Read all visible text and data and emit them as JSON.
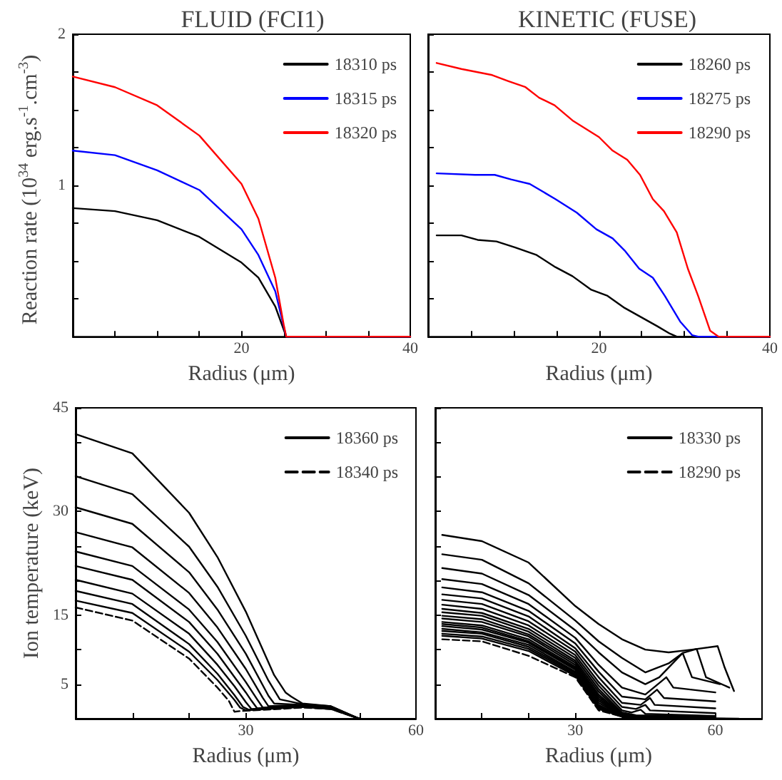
{
  "chart_data": [
    {
      "type": "line",
      "title": "FLUID (FCI1)",
      "xlabel": "Radius (μm)",
      "ylabel": "Reaction rate (10$^{34}$ erg.s$^{-1}$.cm$^{-3}$)",
      "xlim": [
        0,
        40
      ],
      "ylim": [
        0,
        2
      ],
      "xticks": [
        {
          "value": 5,
          "label": null
        },
        {
          "value": 10,
          "label": null
        },
        {
          "value": 15,
          "label": null
        },
        20,
        {
          "value": 25,
          "label": null
        },
        {
          "value": 30,
          "label": null
        },
        {
          "value": 35,
          "label": null
        },
        40
      ],
      "yticks": [
        {
          "value": 0.25,
          "label": null
        },
        {
          "value": 0.5,
          "label": null
        },
        {
          "value": 0.75,
          "label": null
        },
        1,
        {
          "value": 1.25,
          "label": null
        },
        {
          "value": 1.5,
          "label": null
        },
        {
          "value": 1.75,
          "label": null
        },
        2
      ],
      "legend": "top right",
      "marker": "none",
      "series": [
        {
          "name": "18310 ps",
          "color": "#000000",
          "x": [
            0,
            5,
            10,
            15,
            20,
            22,
            24,
            25.3,
            40
          ],
          "values": [
            0.85,
            0.83,
            0.77,
            0.66,
            0.49,
            0.39,
            0.2,
            0,
            0
          ]
        },
        {
          "name": "18315 ps",
          "color": "#0000ff",
          "x": [
            0,
            5,
            10,
            15,
            20,
            22,
            24,
            25.3,
            40
          ],
          "values": [
            1.23,
            1.2,
            1.1,
            0.97,
            0.71,
            0.54,
            0.3,
            0,
            0
          ]
        },
        {
          "name": "18320 ps",
          "color": "#ff0000",
          "x": [
            0,
            5,
            10,
            15,
            20,
            22,
            24,
            25,
            25.3,
            40
          ],
          "values": [
            1.72,
            1.65,
            1.53,
            1.33,
            1.01,
            0.78,
            0.39,
            0.08,
            0,
            0
          ]
        }
      ]
    },
    {
      "type": "line",
      "title": "KINETIC (FUSE)",
      "xlabel": "Radius (μm)",
      "xlim": [
        0,
        40
      ],
      "ylim": [
        0,
        2
      ],
      "tick_labels": "x",
      "xticks": [
        {
          "value": 5,
          "label": null
        },
        {
          "value": 10,
          "label": null
        },
        {
          "value": 15,
          "label": null
        },
        20,
        {
          "value": 25,
          "label": null
        },
        {
          "value": 30,
          "label": null
        },
        {
          "value": 35,
          "label": null
        },
        40
      ],
      "yticks": [
        {
          "value": 0.25,
          "label": null
        },
        {
          "value": 0.5,
          "label": null
        },
        {
          "value": 0.75,
          "label": null
        },
        {
          "value": 1,
          "label": null
        },
        {
          "value": 1.25,
          "label": null
        },
        {
          "value": 1.5,
          "label": null
        },
        {
          "value": 1.75,
          "label": null
        },
        {
          "value": 2,
          "label": null
        }
      ],
      "legend": "top right",
      "marker": "none",
      "series": [
        {
          "name": "18260 ps",
          "color": "#000000",
          "x": [
            1,
            3.9,
            5.8,
            8,
            10.2,
            12.7,
            14.9,
            16.9,
            19.1,
            21,
            23,
            24.9,
            26.8,
            28.3,
            29.1,
            40
          ],
          "values": [
            0.67,
            0.67,
            0.64,
            0.63,
            0.59,
            0.54,
            0.46,
            0.4,
            0.31,
            0.27,
            0.19,
            0.13,
            0.07,
            0.02,
            0,
            0
          ]
        },
        {
          "name": "18275 ps",
          "color": "#0000ff",
          "x": [
            1,
            5.5,
            7.8,
            9.7,
            11.9,
            14.9,
            17.4,
            19.7,
            21.6,
            23,
            24.7,
            26.3,
            27.7,
            29.5,
            30.9,
            31.6,
            40
          ],
          "values": [
            1.08,
            1.07,
            1.07,
            1.04,
            1.01,
            0.91,
            0.82,
            0.71,
            0.65,
            0.57,
            0.45,
            0.39,
            0.27,
            0.1,
            0.01,
            0,
            0
          ]
        },
        {
          "name": "18290 ps",
          "color": "#ff0000",
          "x": [
            1,
            3.9,
            7.5,
            9.4,
            11.4,
            13,
            14.8,
            16.9,
            20,
            21.6,
            23.3,
            24.8,
            26.3,
            27.6,
            29.1,
            30.4,
            31.6,
            33,
            34,
            40
          ],
          "values": [
            1.81,
            1.77,
            1.73,
            1.69,
            1.65,
            1.58,
            1.53,
            1.43,
            1.32,
            1.23,
            1.17,
            1.07,
            0.91,
            0.83,
            0.69,
            0.45,
            0.27,
            0.04,
            0,
            0
          ]
        }
      ]
    },
    {
      "type": "line",
      "xlabel": "Radius (μm)",
      "ylabel": "Ion temperature (keV)",
      "xlim": [
        0,
        60
      ],
      "ylim": [
        0,
        45
      ],
      "xticks": [
        {
          "value": 10,
          "label": null
        },
        {
          "value": 20,
          "label": null
        },
        30,
        {
          "value": 40,
          "label": null
        },
        {
          "value": 50,
          "label": null
        },
        60
      ],
      "yticks": [
        5,
        {
          "value": 10,
          "label": null
        },
        15,
        {
          "value": 20,
          "label": null
        },
        {
          "value": 25,
          "label": null
        },
        30,
        {
          "value": 35,
          "label": null
        },
        {
          "value": 40,
          "label": null
        },
        45
      ],
      "legend": "top right",
      "marker": "none",
      "series": [
        {
          "name": "18360 ps",
          "color": "#000000",
          "line_style": "solid",
          "x": [
            0,
            10,
            20,
            25,
            30,
            35,
            37,
            38,
            40,
            45,
            50
          ],
          "values": [
            41.2,
            38.4,
            29.8,
            23.4,
            15.5,
            6.3,
            3.8,
            3.2,
            2.2,
            1.8,
            0
          ]
        },
        {
          "color": "#000000",
          "line_style": "solid",
          "x": [
            0,
            10,
            20,
            25,
            30,
            34,
            36,
            40,
            45,
            50
          ],
          "values": [
            35.1,
            32.5,
            24.9,
            19.1,
            12,
            5.5,
            2.8,
            2.1,
            1.8,
            0
          ]
        },
        {
          "color": "#000000",
          "line_style": "solid",
          "x": [
            0,
            10,
            20,
            25,
            30,
            34,
            35,
            40,
            45,
            50
          ],
          "values": [
            30.6,
            28.2,
            21.2,
            15.8,
            9.4,
            3.3,
            2.2,
            2,
            1.7,
            0
          ]
        },
        {
          "color": "#000000",
          "line_style": "solid",
          "x": [
            0,
            10,
            20,
            25,
            30,
            33,
            34,
            40,
            45,
            50
          ],
          "values": [
            27,
            24.8,
            18.2,
            13.2,
            7.2,
            3,
            1.8,
            2,
            1.7,
            0
          ]
        },
        {
          "color": "#000000",
          "line_style": "solid",
          "x": [
            0,
            10,
            20,
            25,
            30,
            32,
            33,
            40,
            45,
            50
          ],
          "values": [
            24.2,
            22.1,
            15.8,
            11.1,
            5.3,
            2.8,
            1.6,
            1.9,
            1.6,
            0
          ]
        },
        {
          "color": "#000000",
          "line_style": "solid",
          "x": [
            0,
            10,
            20,
            25,
            30,
            31,
            32,
            40,
            45,
            50
          ],
          "values": [
            22.1,
            20.1,
            14,
            9.4,
            3.8,
            2.6,
            1.5,
            1.9,
            1.6,
            0
          ]
        },
        {
          "color": "#000000",
          "line_style": "solid",
          "x": [
            0,
            10,
            20,
            25,
            28,
            30,
            31,
            40,
            45,
            50
          ],
          "values": [
            20.1,
            18.1,
            12.3,
            7.8,
            4.7,
            2.4,
            1.4,
            1.8,
            1.5,
            0
          ]
        },
        {
          "color": "#000000",
          "line_style": "solid",
          "x": [
            0,
            10,
            20,
            25,
            28,
            29.5,
            30.5,
            40,
            45,
            50
          ],
          "values": [
            18.5,
            16.6,
            10.8,
            6.5,
            3.4,
            1.7,
            1.3,
            1.8,
            1.5,
            0
          ]
        },
        {
          "color": "#000000",
          "line_style": "solid",
          "x": [
            0,
            10,
            20,
            25,
            28,
            29,
            30,
            40,
            45,
            50
          ],
          "values": [
            17.1,
            15.3,
            9.7,
            5.6,
            2.7,
            1.6,
            1.2,
            1.7,
            1.4,
            0
          ]
        },
        {
          "name": "18340 ps",
          "color": "#000000",
          "line_style": "dashed",
          "x": [
            0,
            10,
            20,
            25,
            27,
            28,
            29,
            40,
            45,
            50
          ],
          "values": [
            16.1,
            14.2,
            8.7,
            4.5,
            2.6,
            1,
            1.1,
            1.6,
            1.4,
            0
          ]
        }
      ]
    },
    {
      "type": "line",
      "xlabel": "Radius (μm)",
      "xlim": [
        0,
        70
      ],
      "ylim": [
        0,
        45
      ],
      "tick_labels": "x",
      "xticks": [
        {
          "value": 10,
          "label": null
        },
        {
          "value": 20,
          "label": null
        },
        30,
        {
          "value": 40,
          "label": null
        },
        {
          "value": 50,
          "label": null
        },
        60
      ],
      "yticks": [
        {
          "value": 5,
          "label": null
        },
        {
          "value": 10,
          "label": null
        },
        {
          "value": 15,
          "label": null
        },
        {
          "value": 20,
          "label": null
        },
        {
          "value": 25,
          "label": null
        },
        {
          "value": 30,
          "label": null
        },
        {
          "value": 35,
          "label": null
        },
        {
          "value": 40,
          "label": null
        },
        {
          "value": 45,
          "label": null
        }
      ],
      "legend": "top right",
      "marker": "none",
      "series": [
        {
          "name": "18330 ps",
          "color": "#000000",
          "line_style": "solid",
          "x": [
            1.5,
            10,
            20,
            30,
            35,
            40,
            45,
            50,
            55,
            60.5,
            62,
            64
          ],
          "values": [
            26.6,
            25.7,
            22.6,
            16.3,
            13.7,
            11.5,
            10,
            9.6,
            10,
            10.5,
            7.4,
            4
          ]
        },
        {
          "color": "#000000",
          "line_style": "solid",
          "x": [
            1.5,
            10,
            20,
            30,
            35,
            40,
            45,
            50,
            53,
            56,
            58,
            63
          ],
          "values": [
            23.8,
            23,
            19.6,
            14.2,
            11.2,
            8.8,
            6.7,
            8,
            9.5,
            10.1,
            6,
            4.5
          ]
        },
        {
          "color": "#000000",
          "line_style": "solid",
          "x": [
            1.5,
            10,
            20,
            30,
            35,
            40,
            45,
            48,
            53,
            55,
            61
          ],
          "values": [
            21.8,
            21,
            17.9,
            12.8,
            9.6,
            6.7,
            5,
            6,
            9.5,
            6,
            5
          ]
        },
        {
          "color": "#000000",
          "line_style": "solid",
          "x": [
            1.5,
            10,
            20,
            30,
            35,
            40,
            45,
            49.5,
            51,
            60
          ],
          "values": [
            20.2,
            19.5,
            16.6,
            11.7,
            7.8,
            4.5,
            3.5,
            6,
            4.5,
            3.8
          ]
        },
        {
          "color": "#000000",
          "line_style": "solid",
          "x": [
            1.5,
            10,
            20,
            30,
            35,
            40,
            45,
            47.5,
            49,
            60
          ],
          "values": [
            19,
            18.3,
            15.6,
            10.9,
            6.8,
            3.2,
            2.8,
            4.2,
            3,
            2.5
          ]
        },
        {
          "color": "#000000",
          "line_style": "solid",
          "x": [
            1.5,
            10,
            20,
            30,
            35,
            40,
            44,
            46,
            47,
            60
          ],
          "values": [
            18,
            17.4,
            14.8,
            10.2,
            6,
            2.3,
            2,
            3,
            2,
            1.5
          ]
        },
        {
          "color": "#000000",
          "line_style": "solid",
          "x": [
            1.5,
            10,
            20,
            30,
            35,
            40,
            43,
            45,
            46,
            60
          ],
          "values": [
            17.2,
            16.6,
            14.1,
            9.7,
            5.3,
            1.7,
            1.4,
            2,
            1.2,
            0.8
          ]
        },
        {
          "color": "#000000",
          "line_style": "solid",
          "x": [
            1.5,
            10,
            20,
            30,
            35,
            40,
            42,
            44,
            45,
            60
          ],
          "values": [
            16.5,
            15.9,
            13.5,
            9.2,
            4.8,
            1.2,
            0.9,
            1.3,
            0.7,
            0.4
          ]
        },
        {
          "color": "#000000",
          "line_style": "solid",
          "x": [
            1.5,
            10,
            20,
            30,
            35,
            40,
            43,
            60
          ],
          "values": [
            15.9,
            15.3,
            13,
            8.8,
            4.3,
            0.9,
            0.5,
            0.3
          ]
        },
        {
          "color": "#000000",
          "line_style": "solid",
          "x": [
            1.5,
            10,
            20,
            30,
            35,
            40,
            43,
            60
          ],
          "values": [
            15.4,
            14.9,
            12.6,
            8.4,
            3.9,
            0.7,
            0.4,
            0.2
          ]
        },
        {
          "color": "#000000",
          "line_style": "solid",
          "x": [
            1.5,
            10,
            20,
            30,
            35,
            40,
            43,
            60
          ],
          "values": [
            14.9,
            14.4,
            12.2,
            8.1,
            3.5,
            0.6,
            0.3,
            0.1
          ]
        },
        {
          "color": "#000000",
          "line_style": "solid",
          "x": [
            1.5,
            10,
            20,
            30,
            35,
            40,
            44,
            65
          ],
          "values": [
            14.5,
            14,
            11.9,
            7.8,
            3.2,
            0.5,
            0.2,
            0
          ]
        },
        {
          "color": "#000000",
          "line_style": "solid",
          "x": [
            1.5,
            10,
            20,
            30,
            35,
            40,
            44
          ],
          "values": [
            14,
            13.5,
            11.5,
            7.5,
            2.9,
            0.5,
            0.1
          ]
        },
        {
          "color": "#000000",
          "line_style": "solid",
          "x": [
            1.5,
            10,
            20,
            30,
            35,
            40,
            43.5
          ],
          "values": [
            13.7,
            13.2,
            11.2,
            7.3,
            2.6,
            0.4,
            0
          ]
        },
        {
          "color": "#000000",
          "line_style": "solid",
          "x": [
            1.5,
            10,
            20,
            30,
            35,
            40,
            43
          ],
          "values": [
            13.4,
            12.9,
            11,
            7.1,
            2.3,
            0.4,
            0
          ]
        },
        {
          "color": "#000000",
          "line_style": "solid",
          "x": [
            1.5,
            10,
            20,
            30,
            35,
            40,
            42.5
          ],
          "values": [
            13,
            12.5,
            10.7,
            6.8,
            2,
            0.3,
            0
          ]
        },
        {
          "color": "#000000",
          "line_style": "solid",
          "x": [
            1.5,
            10,
            20,
            30,
            35,
            40,
            42
          ],
          "values": [
            12.7,
            12.3,
            10.4,
            6.6,
            1.8,
            0.3,
            0
          ]
        },
        {
          "color": "#000000",
          "line_style": "solid",
          "x": [
            1.5,
            10,
            20,
            30,
            35,
            40,
            41.5
          ],
          "values": [
            12.3,
            11.9,
            10.1,
            6.4,
            1.6,
            0.3,
            0
          ]
        },
        {
          "color": "#000000",
          "line_style": "solid",
          "x": [
            1.5,
            10,
            20,
            30,
            35,
            40,
            41
          ],
          "values": [
            12,
            11.6,
            9.8,
            6.2,
            1.4,
            0.3,
            0
          ]
        },
        {
          "name": "18290 ps",
          "color": "#000000",
          "line_style": "dashed",
          "x": [
            1.5,
            10,
            20,
            30,
            35,
            40,
            40.5
          ],
          "values": [
            11.5,
            11.2,
            9.1,
            6,
            1.2,
            0.3,
            0
          ]
        }
      ]
    }
  ]
}
